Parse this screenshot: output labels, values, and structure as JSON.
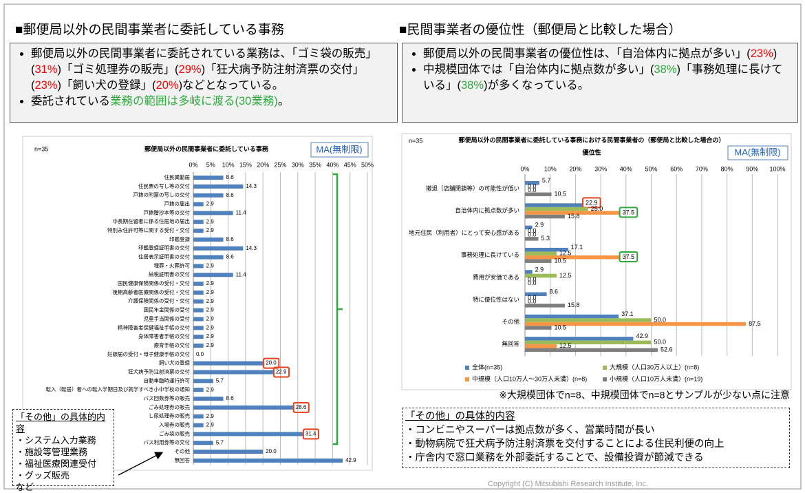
{
  "header": {
    "left_title": "■郵便局以外の民間事業者に委託している事務",
    "right_title": "■民間事業者の優位性（郵便局と比較した場合）"
  },
  "left_box": {
    "bullets": [
      [
        {
          "text": "郵便局以外の民間事業者に委託されている業務は、「ゴミ袋の販売」("
        },
        {
          "text": "31%",
          "color": "#ff0000"
        },
        {
          "text": ")「ゴミ処理券の販売」("
        },
        {
          "text": "29%",
          "color": "#ff0000"
        },
        {
          "text": ")「狂犬病予防注射済票の交付」("
        },
        {
          "text": "23%",
          "color": "#ff0000"
        },
        {
          "text": ")「飼い犬の登録」("
        },
        {
          "text": "20%",
          "color": "#ff0000"
        },
        {
          "text": ")などとなっている。"
        }
      ],
      [
        {
          "text": "委託されている"
        },
        {
          "text": "業務の範囲は多岐に渡る(30業務)",
          "color": "#2eaa3c"
        },
        {
          "text": "。"
        }
      ]
    ]
  },
  "right_box": {
    "bullets": [
      [
        {
          "text": "郵便局以外の民間事業者の優位性は、「自治体内に拠点が多い」("
        },
        {
          "text": "23%",
          "color": "#ff0000"
        },
        {
          "text": ")"
        }
      ],
      [
        {
          "text": "中規模団体では「自治体内に拠点数が多い」("
        },
        {
          "text": "38%",
          "color": "#2eaa3c"
        },
        {
          "text": ")「事務処理に長けている」("
        },
        {
          "text": "38%",
          "color": "#2eaa3c"
        },
        {
          "text": ")が多くなっている。"
        }
      ]
    ]
  },
  "chart_data": [
    {
      "type": "hbar",
      "title": "郵便局以外の民間事業者に委託している事務",
      "n_label": "n=35",
      "badge": "MA(無制限)",
      "color": "#4f81bd",
      "categories": [
        "住民異動届",
        "住民票の写し等の交付",
        "戸籍の附票の写しの交付",
        "戸籍の届出",
        "戸籍謄抄本等の交付",
        "中長期在留者に係る住居地の届出",
        "特別永住許可等に関する受付・交付",
        "印鑑登録",
        "印鑑登録証明書の交付",
        "住居表示証明書の交付",
        "埋葬・火葬許可",
        "納税証明書の交付",
        "国民健康保険関係の受付・交付",
        "後期高齢者医療関係の受付・交付",
        "介護保険関係の受付・交付",
        "国民年金関係の受付",
        "児童手当関係の受付",
        "精神障害者保健福祉手帳の交付",
        "身体障害者手帳の交付",
        "療育手帳の交付",
        "妊娠届の受付・母子健康手帳の交付",
        "飼い犬の登録",
        "狂犬病予防注射済票の交付",
        "自動車臨時運行許可",
        "転入（転居）者への転入学期日及び就学すべき小中学校の通知",
        "バス回数券等の販売",
        "ごみ処理券の販売",
        "し尿処理券の販売",
        "入場券の販売",
        "ごみ袋の販売",
        "バス利用券等の交付",
        "その他",
        "無回答"
      ],
      "values": [
        8.6,
        14.3,
        8.6,
        2.9,
        11.4,
        2.9,
        2.9,
        8.6,
        14.3,
        8.6,
        2.9,
        11.4,
        2.9,
        2.9,
        2.9,
        2.9,
        2.9,
        2.9,
        2.9,
        2.9,
        0,
        20,
        22.9,
        5.7,
        2.9,
        8.6,
        28.6,
        2.9,
        2.9,
        31.4,
        5.7,
        20,
        42.9
      ],
      "value_labels": [
        "8.6",
        "14.3",
        "8.6",
        "2.9",
        "11.4",
        "2.9",
        "2.9",
        "8.6",
        "14.3",
        "8.6",
        "2.9",
        "11.4",
        "2.9",
        "2.9",
        "2.9",
        "2.9",
        "2.9",
        "2.9",
        "2.9",
        "2.9",
        "0.0",
        "20.0",
        "22.9",
        "5.7",
        "2.9",
        "8.6",
        "28.6",
        "2.9",
        "2.9",
        "31.4",
        "5.7",
        "20.0",
        "42.9"
      ],
      "highlight_color": "#e8401c",
      "highlighted": [
        21,
        22,
        26,
        29
      ],
      "xlim": [
        0,
        50
      ],
      "xticks": [
        {
          "value": 0,
          "label": "0%"
        },
        {
          "value": 5,
          "label": "5%"
        },
        {
          "value": 10,
          "label": "10%"
        },
        {
          "value": 15,
          "label": "15%"
        },
        {
          "value": 20,
          "label": "20%"
        },
        {
          "value": 25,
          "label": "25%"
        },
        {
          "value": 30,
          "label": "30%"
        },
        {
          "value": 35,
          "label": "35%"
        },
        {
          "value": 40,
          "label": "40%"
        },
        {
          "value": 45,
          "label": "45%"
        },
        {
          "value": 50,
          "label": "50%"
        }
      ],
      "grid": true
    },
    {
      "type": "grouped_hbar",
      "title": [
        "郵便局以外の民間事業者に委託している事務における民間事業者の（郵便局と比較した場合の）",
        "優位性"
      ],
      "n_label": "n=35",
      "badge": "MA(無制限)",
      "categories": [
        "撤退（店舗閉鎖等）の可能性が低い",
        "自治体内に拠点数が多い",
        "地元住民（利用者）にとって安心感がある",
        "事務処理に長けている",
        "費用が安価である",
        "特に優位性はない",
        "その他",
        "無回答"
      ],
      "series": [
        {
          "name": "全体(n=35)",
          "color": "#4f81bd",
          "values": [
            5.7,
            22.9,
            2.9,
            17.1,
            2.9,
            8.6,
            37.1,
            42.9
          ],
          "value_labels": [
            "5.7",
            "22.9",
            "2.9",
            "17.1",
            "2.9",
            "8.6",
            "37.1",
            "42.9"
          ]
        },
        {
          "name": "大規模（人口30万人以上）(n=8)",
          "color": "#9bbb59",
          "values": [
            0,
            25,
            0,
            12.5,
            12.5,
            0,
            50,
            50
          ],
          "value_labels": [
            "0.0",
            "25.0",
            "0.0",
            "12.5",
            "12.5",
            "0.0",
            "50.0",
            "50.0"
          ]
        },
        {
          "name": "中規模（人口10万人～30万人未満）(n=8)",
          "color": "#f79646",
          "values": [
            0,
            37.5,
            0,
            37.5,
            0,
            0,
            87.5,
            12.5
          ],
          "value_labels": [
            "0.0",
            "37.5",
            "0.0",
            "37.5",
            "0.0",
            "0.0",
            "87.5",
            "12.5"
          ]
        },
        {
          "name": "小規模（人口10万人未満）(n=19)",
          "color": "#7f7f7f",
          "values": [
            10.5,
            15.8,
            5.3,
            10.5,
            0,
            15.8,
            10.5,
            52.6
          ],
          "value_labels": [
            "10.5",
            "15.8",
            "5.3",
            "10.5",
            "0.0",
            "15.8",
            "10.5",
            "52.6"
          ]
        }
      ],
      "highlights": [
        {
          "series": 0,
          "index": 1,
          "color": "#e8401c"
        },
        {
          "series": 2,
          "index": 1,
          "color": "#2eaa3c"
        },
        {
          "series": 2,
          "index": 3,
          "color": "#2eaa3c"
        }
      ],
      "xlim": [
        0,
        100
      ],
      "xticks": [
        {
          "value": 0,
          "label": "0%"
        },
        {
          "value": 10,
          "label": "10%"
        },
        {
          "value": 20,
          "label": "20%"
        },
        {
          "value": 30,
          "label": "30%"
        },
        {
          "value": 40,
          "label": "40%"
        },
        {
          "value": 50,
          "label": "50%"
        },
        {
          "value": 60,
          "label": "60%"
        },
        {
          "value": 70,
          "label": "70%"
        },
        {
          "value": 80,
          "label": "80%"
        },
        {
          "value": 90,
          "label": "90%"
        },
        {
          "value": 100,
          "label": "100%"
        }
      ],
      "grid": true,
      "legend": "bottom"
    }
  ],
  "note": "※大規模団体でn=8、中規模団体でn=8とサンプルが少ない点に注意",
  "left_other": {
    "title": "「その他」の具体的内容",
    "items": [
      "・システム入力業務",
      "・施設等管理業務",
      "・福祉医療関連受付",
      "・グッズ販売",
      "など"
    ]
  },
  "right_other": {
    "title": "「その他」の具体的内容",
    "items": [
      "・コンビニやスーパーは拠点数が多く、営業時間が長い",
      "・動物病院で狂犬病予防注射済票を交付することによる住民利便の向上",
      "・庁舎内で窓口業務を外部委託することで、設備投資が節減できる"
    ]
  },
  "copyright": "Copyright (C) Mitsubishi Research Institute, Inc."
}
